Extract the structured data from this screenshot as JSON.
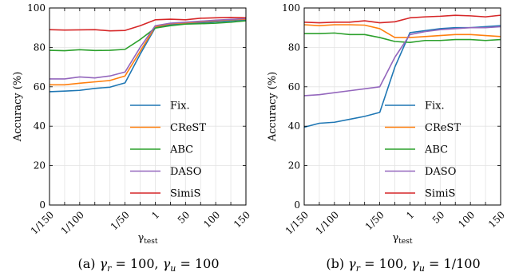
{
  "chart_data": [
    {
      "type": "line",
      "caption": "(a) γ_r = 100, γ_u = 100",
      "caption_parts": {
        "label": "(a)",
        "rest": ", ",
        "r_value": "100",
        "u_value": "100"
      },
      "xlabel": "γ_test",
      "ylabel": "Accuracy (%)",
      "ylim": [
        0,
        100
      ],
      "yticks": [
        "0",
        "20",
        "40",
        "60",
        "80",
        "100"
      ],
      "categories": [
        "1/150",
        "",
        "1/100",
        "",
        "",
        "1/50",
        "",
        "1",
        "",
        "50",
        "",
        "100",
        "",
        "150"
      ],
      "tick_labels": [
        "1/150",
        "1/100",
        "1/50",
        "1",
        "50",
        "100",
        "150"
      ],
      "grid": true,
      "legend_position": "lower-right",
      "series": [
        {
          "name": "Fix.",
          "color": "#1f77b4",
          "values": [
            57.5,
            57.8,
            58.2,
            59.2,
            59.8,
            62.0,
            76.5,
            90.0,
            91.5,
            92.0,
            92.5,
            93.0,
            93.5,
            94.0
          ]
        },
        {
          "name": "CReST",
          "color": "#ff7f0e",
          "values": [
            61.0,
            61.0,
            61.8,
            62.5,
            63.2,
            65.5,
            78.0,
            90.5,
            92.0,
            92.5,
            93.0,
            93.5,
            94.0,
            94.3
          ]
        },
        {
          "name": "ABC",
          "color": "#2ca02c",
          "values": [
            78.5,
            78.3,
            78.8,
            78.4,
            78.5,
            79.0,
            84.0,
            89.8,
            91.0,
            91.8,
            92.0,
            92.3,
            92.8,
            93.5
          ]
        },
        {
          "name": "DASO",
          "color": "#9467bd",
          "values": [
            64.0,
            64.0,
            65.0,
            64.5,
            65.5,
            67.5,
            80.0,
            91.0,
            92.3,
            92.8,
            93.3,
            93.8,
            94.2,
            94.6
          ]
        },
        {
          "name": "SimiS",
          "color": "#d62728",
          "values": [
            89.0,
            88.8,
            88.9,
            89.0,
            88.4,
            88.6,
            91.0,
            94.0,
            94.3,
            94.0,
            94.8,
            95.0,
            95.2,
            95.0
          ]
        }
      ]
    },
    {
      "type": "line",
      "caption": "(b) γ_r = 100, γ_u = 1/100",
      "caption_parts": {
        "label": "(b)",
        "rest": ", ",
        "r_value": "100",
        "u_value": "1/100"
      },
      "xlabel": "γ_test",
      "ylabel": "Accuracy (%)",
      "ylim": [
        0,
        100
      ],
      "yticks": [
        "0",
        "20",
        "40",
        "60",
        "80",
        "100"
      ],
      "categories": [
        "1/150",
        "",
        "1/100",
        "",
        "",
        "1/50",
        "",
        "1",
        "",
        "50",
        "",
        "100",
        "",
        "150"
      ],
      "tick_labels": [
        "1/150",
        "1/100",
        "1/50",
        "1",
        "50",
        "100",
        "150"
      ],
      "grid": true,
      "legend_position": "lower-right",
      "series": [
        {
          "name": "Fix.",
          "color": "#1f77b4",
          "values": [
            39.5,
            41.5,
            42.0,
            43.5,
            45.0,
            47.0,
            70.0,
            87.5,
            88.5,
            89.5,
            90.0,
            90.0,
            90.5,
            91.0
          ]
        },
        {
          "name": "CReST",
          "color": "#ff7f0e",
          "values": [
            91.5,
            91.0,
            91.5,
            91.5,
            91.3,
            89.5,
            85.0,
            85.0,
            85.5,
            86.0,
            86.5,
            86.5,
            86.0,
            85.5
          ]
        },
        {
          "name": "ABC",
          "color": "#2ca02c",
          "values": [
            87.0,
            87.0,
            87.3,
            86.5,
            86.5,
            85.0,
            83.0,
            82.5,
            83.5,
            83.5,
            84.0,
            84.0,
            83.5,
            84.0
          ]
        },
        {
          "name": "DASO",
          "color": "#9467bd",
          "values": [
            55.5,
            56.0,
            57.0,
            58.0,
            59.0,
            60.0,
            75.0,
            86.5,
            88.0,
            89.0,
            89.5,
            90.0,
            90.0,
            90.5
          ]
        },
        {
          "name": "SimiS",
          "color": "#d62728",
          "values": [
            92.8,
            92.5,
            92.8,
            92.8,
            93.5,
            92.5,
            93.0,
            95.0,
            95.5,
            95.8,
            96.3,
            96.0,
            95.5,
            96.3
          ]
        }
      ]
    }
  ]
}
